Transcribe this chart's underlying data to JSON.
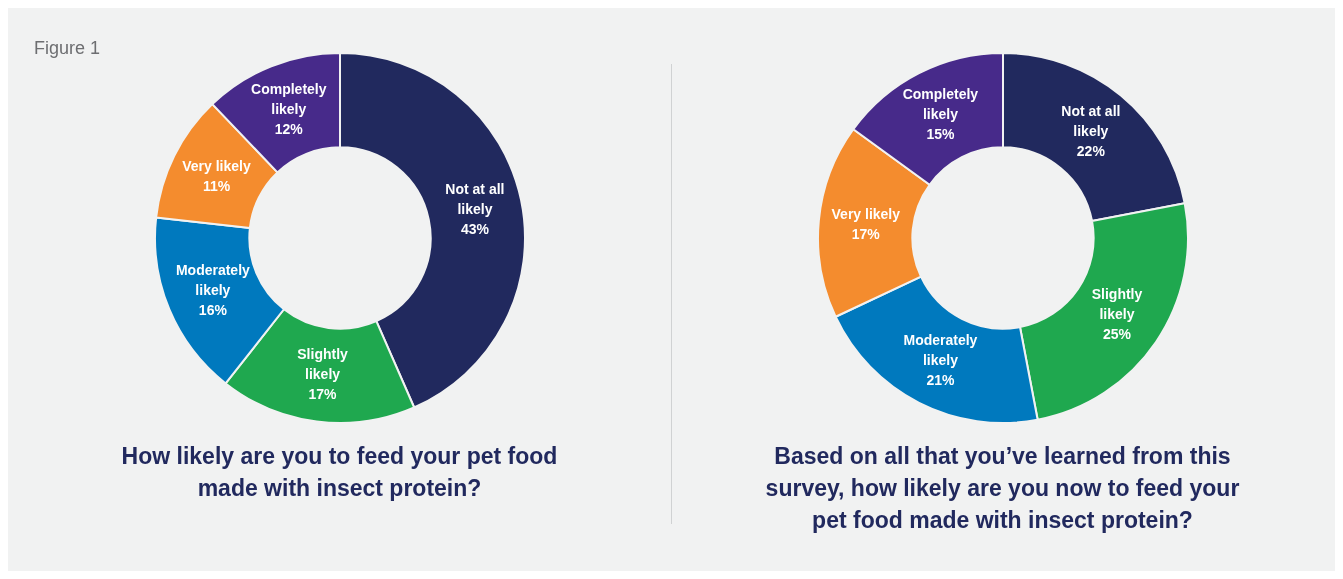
{
  "chart_data": [
    {
      "type": "donut",
      "title": "How likely are you to feed your pet food made with insect protein?",
      "annotations": [
        "Figure 1"
      ],
      "categories": [
        "Not at all likely",
        "Slightly likely",
        "Moderately likely",
        "Very likely",
        "Completely likely"
      ],
      "values": [
        43,
        17,
        16,
        11,
        12
      ],
      "colors": [
        "#21295e",
        "#1fa84f",
        "#0079be",
        "#f48c2e",
        "#472a8a"
      ],
      "value_labels": [
        "43%",
        "17%",
        "16%",
        "11%",
        "12%"
      ]
    },
    {
      "type": "donut",
      "title": "Based on all that you’ve learned from this survey, how likely are you now to feed your pet food made with insect protein?",
      "categories": [
        "Not at all likely",
        "Slightly likely",
        "Moderately likely",
        "Very likely",
        "Completely likely"
      ],
      "values": [
        22,
        25,
        21,
        17,
        15
      ],
      "colors": [
        "#21295e",
        "#1fa84f",
        "#0079be",
        "#f48c2e",
        "#472a8a"
      ],
      "value_labels": [
        "22%",
        "25%",
        "21%",
        "17%",
        "15%"
      ]
    }
  ]
}
